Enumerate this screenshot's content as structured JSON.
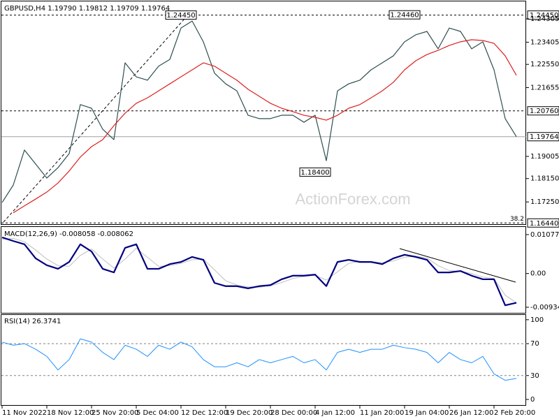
{
  "chart_data": {
    "type": "line",
    "categories": [
      "11 Nov 2022",
      null,
      null,
      null,
      "18 Nov 12:00",
      null,
      null,
      null,
      "25 Nov 20:00",
      null,
      null,
      null,
      "5 Dec 04:00",
      null,
      null,
      null,
      "12 Dec 12:00",
      null,
      null,
      null,
      "19 Dec 20:00",
      null,
      null,
      null,
      "28 Dec 00:00",
      null,
      null,
      null,
      "4 Jan 12:00",
      null,
      null,
      null,
      "11 Jan 20:00",
      null,
      null,
      null,
      "19 Jan 04:00",
      null,
      null,
      null,
      "26 Jan 12:00",
      null,
      null,
      null,
      "2 Feb 20:00",
      null,
      null
    ],
    "panels": [
      {
        "title": "GBPUSD,H4  1.19790 1.19812 1.19709 1.19764",
        "ylim": [
          1.1642,
          1.2495
        ],
        "yticks": [
          1.24305,
          1.23405,
          {
            "value": 1.2255,
            "label": "1.22550"
          },
          1.21655,
          {
            "value": 1.19005,
            "label": "1.19005"
          },
          {
            "value": 1.1815,
            "label": "1.18150"
          },
          {
            "value": 1.1725,
            "label": "1.17250"
          }
        ],
        "levels": [
          {
            "value": 1.2445,
            "label": "1.24450"
          },
          {
            "value": 1.2076,
            "label": "1.20760"
          },
          {
            "value": 1.1644,
            "label": "1.16440"
          }
        ],
        "current": {
          "value": 1.19764,
          "label": "1.19764"
        },
        "fib_label": "38.2",
        "watermark": "ActionForex.com",
        "annotations": [
          {
            "index": 16,
            "value": 1.2445,
            "label": "1.24450"
          },
          {
            "index": 36,
            "value": 1.2446,
            "label": "1.24460"
          },
          {
            "index": 28,
            "value": 1.184,
            "label": "1.18400"
          }
        ],
        "series": [
          {
            "color": "#2f4f4f",
            "width": 1.2,
            "values": [
              1.1723,
              1.179,
              1.1925,
              1.1871,
              1.1817,
              1.1857,
              1.1911,
              1.21,
              1.2086,
              1.2005,
              1.1965,
              1.2261,
              1.2207,
              1.2194,
              1.2248,
              1.2274,
              1.2395,
              1.2422,
              1.2342,
              1.2221,
              1.218,
              1.2153,
              1.2059,
              1.2046,
              1.2046,
              1.2059,
              1.2059,
              1.2032,
              1.2059,
              1.1884,
              1.2153,
              1.218,
              1.2194,
              1.2234,
              1.2261,
              1.2288,
              1.2342,
              1.2369,
              1.2382,
              1.2315,
              1.2395,
              1.2382,
              1.2315,
              1.2342,
              1.2234,
              1.2046,
              1.19764
            ]
          },
          {
            "color": "#dc2020",
            "width": 1.2,
            "values": [
              null,
              1.1683,
              1.171,
              1.1736,
              1.1763,
              1.1798,
              1.1844,
              1.1898,
              1.1938,
              1.1965,
              1.2019,
              1.2067,
              1.2105,
              1.2126,
              1.2153,
              1.218,
              1.2207,
              1.2234,
              1.2261,
              1.2248,
              1.2221,
              1.2194,
              1.2159,
              1.2132,
              1.2105,
              1.2086,
              1.2073,
              1.2059,
              1.2051,
              1.204,
              1.2059,
              1.2086,
              1.21,
              1.2126,
              1.2153,
              1.2186,
              1.2234,
              1.2269,
              1.2293,
              1.2309,
              1.2328,
              1.2342,
              1.235,
              1.2347,
              1.2336,
              1.2288,
              1.2213
            ]
          }
        ]
      },
      {
        "title": "MACD(12,26,9) -0.008058 -0.008062",
        "ylim": [
          -0.0107,
          0.0127
        ],
        "yticks": [
          0.010775,
          {
            "value": 0,
            "label": "0.00"
          },
          -0.009343
        ],
        "series": [
          {
            "color": "#c0c0c0",
            "width": 1,
            "values": [
              0.0095,
              0.0097,
              0.0088,
              0.0065,
              0.004,
              0.0022,
              0.002,
              0.005,
              0.0068,
              0.004,
              0.0015,
              0.004,
              0.007,
              0.0045,
              0.002,
              0.0022,
              0.0028,
              0.0038,
              0.004,
              0.001,
              -0.002,
              -0.0032,
              -0.0037,
              -0.0038,
              -0.0034,
              -0.0025,
              -0.0014,
              -0.0008,
              -0.0005,
              -0.0018,
              0.0005,
              0.0028,
              0.0034,
              0.0033,
              0.003,
              0.0035,
              0.0045,
              0.0048,
              0.0043,
              0.0022,
              0.0008,
              0.0006,
              0.0,
              -0.001,
              -0.0014,
              -0.006,
              -0.0081
            ]
          },
          {
            "color": "#000080",
            "width": 2.2,
            "values": [
              0.01,
              0.009,
              0.0081,
              0.0042,
              0.0023,
              0.0013,
              0.0032,
              0.0081,
              0.0061,
              0.0013,
              0.0003,
              0.0071,
              0.0081,
              0.0013,
              0.0013,
              0.0026,
              0.0032,
              0.0046,
              0.0038,
              -0.0026,
              -0.0035,
              -0.0035,
              -0.0041,
              -0.0035,
              -0.0032,
              -0.0016,
              -0.0006,
              -0.0006,
              -0.0003,
              -0.0035,
              0.0032,
              0.0038,
              0.0032,
              0.0032,
              0.0026,
              0.0042,
              0.0052,
              0.0046,
              0.0038,
              0.0003,
              0.0003,
              0.0007,
              -0.0006,
              -0.0016,
              -0.0016,
              -0.0088,
              -0.0081
            ]
          }
        ]
      },
      {
        "title": "RSI(14) 26.3741",
        "ylim": [
          -7,
          106
        ],
        "yticks": [
          100,
          70,
          30,
          0
        ],
        "levels": [
          70,
          30
        ],
        "series": [
          {
            "color": "#1e90ff",
            "width": 1,
            "values": [
              72,
              68,
              70,
              63,
              54,
              37,
              50,
              76,
              72,
              59,
              50,
              68,
              63,
              54,
              68,
              63,
              72,
              66,
              50,
              41,
              41,
              46,
              41,
              50,
              46,
              50,
              54,
              46,
              50,
              37,
              59,
              63,
              59,
              63,
              63,
              68,
              65,
              63,
              59,
              46,
              59,
              50,
              46,
              54,
              32,
              24,
              26.3741
            ]
          }
        ]
      }
    ]
  }
}
